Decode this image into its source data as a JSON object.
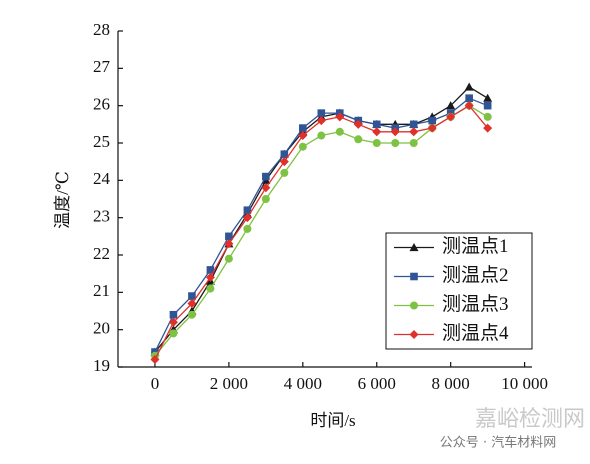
{
  "chart_data": {
    "type": "line",
    "xlabel": "时间/s",
    "ylabel": "温度/℃",
    "x": [
      0,
      500,
      1000,
      1500,
      2000,
      2500,
      3000,
      3500,
      4000,
      4500,
      5000,
      5500,
      6000,
      6500,
      7000,
      7500,
      8000,
      8500,
      9000
    ],
    "series": [
      {
        "name": "测温点1",
        "color": "#1a1a1a",
        "marker": "triangle",
        "values": [
          19.4,
          20.0,
          20.5,
          21.3,
          22.3,
          23.1,
          24.0,
          24.7,
          25.3,
          25.7,
          25.8,
          25.6,
          25.5,
          25.5,
          25.5,
          25.7,
          26.0,
          26.5,
          26.2
        ]
      },
      {
        "name": "测温点2",
        "color": "#2f5597",
        "marker": "square",
        "values": [
          19.4,
          20.4,
          20.9,
          21.6,
          22.5,
          23.2,
          24.1,
          24.7,
          25.4,
          25.8,
          25.8,
          25.6,
          25.5,
          25.4,
          25.5,
          25.6,
          25.8,
          26.2,
          26.0
        ]
      },
      {
        "name": "测温点3",
        "color": "#7dc242",
        "marker": "circle",
        "values": [
          19.3,
          19.9,
          20.4,
          21.1,
          21.9,
          22.7,
          23.5,
          24.2,
          24.9,
          25.2,
          25.3,
          25.1,
          25.0,
          25.0,
          25.0,
          25.4,
          25.7,
          26.0,
          25.7
        ]
      },
      {
        "name": "测温点4",
        "color": "#e0302b",
        "marker": "diamond",
        "values": [
          19.2,
          20.2,
          20.7,
          21.4,
          22.3,
          23.0,
          23.8,
          24.5,
          25.2,
          25.6,
          25.7,
          25.5,
          25.3,
          25.3,
          25.3,
          25.4,
          25.7,
          26.0,
          25.4
        ]
      }
    ],
    "xlim": [
      -1000,
      10200
    ],
    "xticks": [
      0,
      {
        "value": 2000,
        "label": "2 000"
      },
      {
        "value": 4000,
        "label": "4 000"
      },
      {
        "value": 6000,
        "label": "6 000"
      },
      {
        "value": 8000,
        "label": "8 000"
      },
      {
        "value": 10000,
        "label": "10 000"
      }
    ],
    "ylim": [
      19,
      28
    ],
    "yticks": [
      19,
      20,
      21,
      22,
      23,
      24,
      25,
      26,
      27,
      28
    ],
    "grid": false,
    "legend": "right",
    "annotations": [
      "嘉峪检测网",
      "公众号 · 汽车材料网"
    ]
  }
}
